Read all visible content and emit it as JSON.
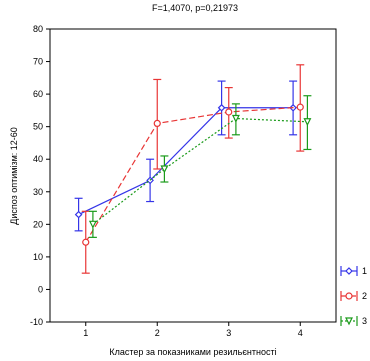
{
  "chart_data": {
    "type": "line",
    "title": "F=1,4070, p=0,21973",
    "xlabel": "Кластер за показниками резильєнтності",
    "ylabel": "Диспоз оптимізм: 12-60",
    "categories": [
      "1",
      "2",
      "3",
      "4"
    ],
    "xlim": [
      0.5,
      4.5
    ],
    "ylim": [
      -10,
      80
    ],
    "yticks": [
      -10,
      0,
      10,
      20,
      30,
      40,
      50,
      60,
      70,
      80
    ],
    "grid": false,
    "legend_position": "right-bottom",
    "series": [
      {
        "name": "1",
        "color": "#3535e8",
        "line_style": "solid",
        "marker": "diamond",
        "values": [
          23,
          33.5,
          55.8,
          55.8
        ],
        "lower": [
          18,
          27,
          47.5,
          47.5
        ],
        "upper": [
          28,
          40,
          64,
          64
        ]
      },
      {
        "name": "2",
        "color": "#e83535",
        "line_style": "dashed",
        "marker": "circle",
        "values": [
          14.5,
          51,
          54.5,
          56
        ],
        "lower": [
          5,
          37,
          46.5,
          42.5
        ],
        "upper": [
          24,
          64.5,
          62,
          69
        ]
      },
      {
        "name": "3",
        "color": "#1a9a1a",
        "line_style": "dotted",
        "marker": "triangle-down",
        "values": [
          20,
          37,
          52.5,
          51.5
        ],
        "lower": [
          16,
          33,
          47.5,
          43
        ],
        "upper": [
          24,
          41,
          57,
          59.5
        ]
      }
    ]
  }
}
